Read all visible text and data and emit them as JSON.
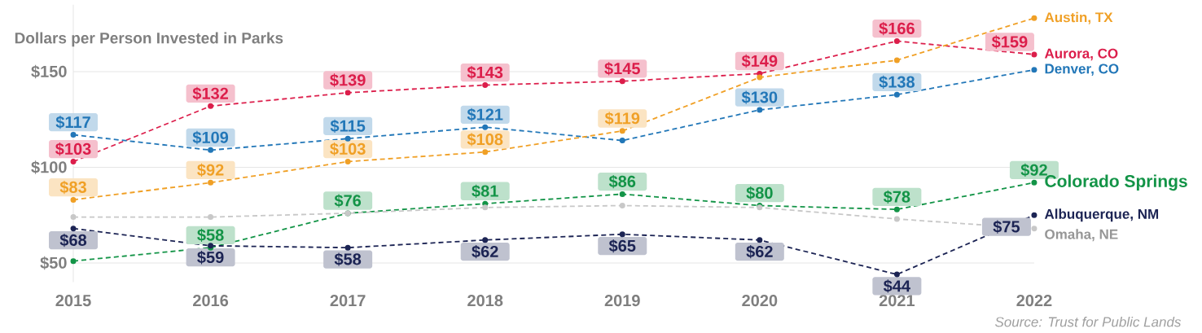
{
  "chart_data": {
    "type": "line",
    "title": "Dollars per Person Invested in Parks",
    "categories": [
      "2015",
      "2016",
      "2017",
      "2018",
      "2019",
      "2020",
      "2021",
      "2022"
    ],
    "series": [
      {
        "name": "Aurora, CO",
        "color": "#dc1e4b",
        "values": [
          103,
          132,
          139,
          143,
          145,
          149,
          166,
          159
        ],
        "value_labels": [
          "$103",
          "$132",
          "$139",
          "$143",
          "$145",
          "$149",
          "$166",
          "$159"
        ]
      },
      {
        "name": "Denver, CO",
        "color": "#2277b8",
        "values": [
          117,
          109,
          115,
          121,
          114,
          130,
          138,
          151
        ],
        "value_labels": [
          "$117",
          "$109",
          "$115",
          "$121",
          null,
          "$130",
          "$138",
          null
        ]
      },
      {
        "name": "Austin, TX",
        "color": "#f0a026",
        "values": [
          83,
          92,
          103,
          108,
          119,
          147,
          156,
          178
        ],
        "value_labels": [
          "$83",
          "$92",
          "$103",
          "$108",
          "$119",
          null,
          null,
          null
        ]
      },
      {
        "name": "Colorado Springs",
        "color": "#139447",
        "values": [
          51,
          58,
          76,
          81,
          86,
          80,
          78,
          92
        ],
        "value_labels": [
          null,
          "$58",
          "$76",
          "$81",
          "$86",
          "$80",
          "$78",
          "$92"
        ]
      },
      {
        "name": "Albuquerque, NM",
        "color": "#1c2454",
        "values": [
          68,
          59,
          58,
          62,
          65,
          62,
          44,
          75
        ],
        "value_labels": [
          "$68",
          "$59",
          "$58",
          "$62",
          "$65",
          "$62",
          "$44",
          "$75"
        ]
      },
      {
        "name": "Omaha, NE",
        "color": "#c8c8c8",
        "values": [
          74,
          74,
          76,
          79,
          80,
          79,
          73,
          68
        ]
      }
    ],
    "yticks": [
      {
        "value": 50,
        "label": "$50"
      },
      {
        "value": 100,
        "label": "$100"
      },
      {
        "value": 150,
        "label": "$150"
      }
    ],
    "ylim": [
      40,
      185
    ],
    "grid": "y",
    "legend": "right",
    "marker": "circle",
    "line_style": "dashed",
    "annotations": [
      "Source: Trust for Public Lands"
    ]
  }
}
